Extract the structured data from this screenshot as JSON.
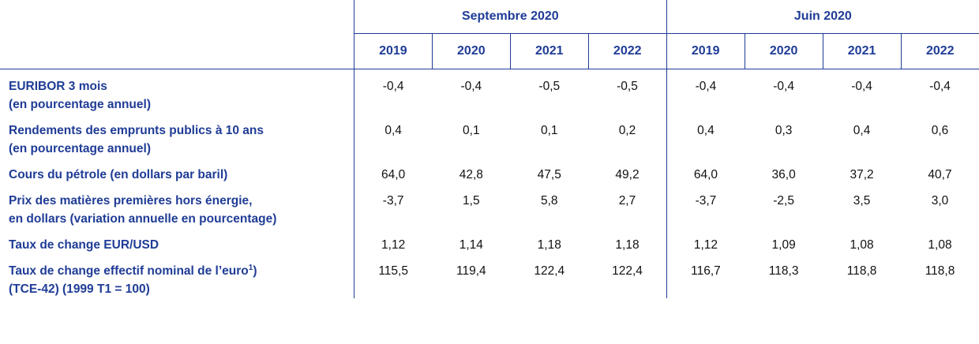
{
  "groups": {
    "september": "Septembre 2020",
    "june": "Juin 2020"
  },
  "years": [
    "2019",
    "2020",
    "2021",
    "2022"
  ],
  "rows": [
    {
      "label_line1_bold": "EURIBOR",
      "label_line1_rest": " 3 mois",
      "label_line2": "(en pourcentage annuel)",
      "values": [
        "-0,4",
        "-0,4",
        "-0,5",
        "-0,5",
        "-0,4",
        "-0,4",
        "-0,4",
        "-0,4"
      ]
    },
    {
      "label_line1_bold": "Rendements des emprunts publics à 10 ans",
      "label_line1_rest": "",
      "label_line2": "(en pourcentage annuel)",
      "values": [
        "0,4",
        "0,1",
        "0,1",
        "0,2",
        "0,4",
        "0,3",
        "0,4",
        "0,6"
      ]
    },
    {
      "label_line1_bold": "Cours du pétrole (en dollars par baril)",
      "label_line1_rest": "",
      "label_line2": "",
      "values": [
        "64,0",
        "42,8",
        "47,5",
        "49,2",
        "64,0",
        "36,0",
        "37,2",
        "40,7"
      ]
    },
    {
      "label_line1_bold": "Prix des matières premières hors énergie,",
      "label_line1_rest": "",
      "label_line2": "en dollars (variation annuelle en pourcentage)",
      "values": [
        "-3,7",
        "1,5",
        "5,8",
        "2,7",
        "-3,7",
        "-2,5",
        "3,5",
        "3,0"
      ]
    },
    {
      "label_line1_bold": "Taux de change EUR/USD",
      "label_line1_rest": "",
      "label_line2": "",
      "values": [
        "1,12",
        "1,14",
        "1,18",
        "1,18",
        "1,12",
        "1,09",
        "1,08",
        "1,08"
      ]
    },
    {
      "label_line1_bold": "Taux de change effectif nominal de l’euro",
      "label_sup": "1",
      "label_line1_after": ")",
      "label_line2": "(TCE-42) (1999 T1 = 100)",
      "values": [
        "115,5",
        "119,4",
        "122,4",
        "122,4",
        "116,7",
        "118,3",
        "118,8",
        "118,8"
      ]
    }
  ],
  "colors": {
    "header_text": "#1f3c96",
    "rule": "#1f3c96",
    "body_text": "#111111"
  }
}
